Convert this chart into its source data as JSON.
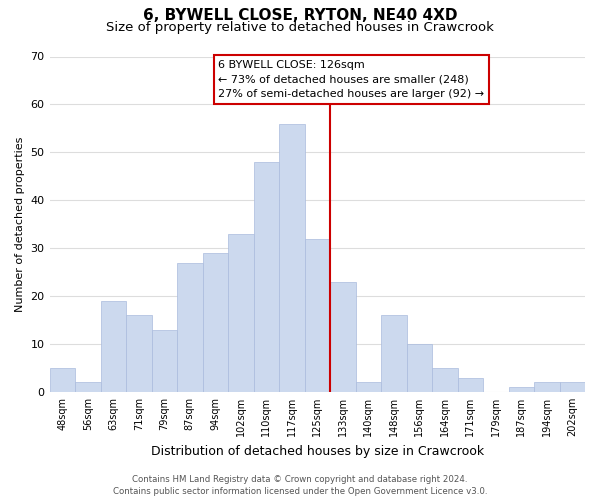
{
  "title": "6, BYWELL CLOSE, RYTON, NE40 4XD",
  "subtitle": "Size of property relative to detached houses in Crawcrook",
  "xlabel": "Distribution of detached houses by size in Crawcrook",
  "ylabel": "Number of detached properties",
  "bar_labels": [
    "48sqm",
    "56sqm",
    "63sqm",
    "71sqm",
    "79sqm",
    "87sqm",
    "94sqm",
    "102sqm",
    "110sqm",
    "117sqm",
    "125sqm",
    "133sqm",
    "140sqm",
    "148sqm",
    "156sqm",
    "164sqm",
    "171sqm",
    "179sqm",
    "187sqm",
    "194sqm",
    "202sqm"
  ],
  "bar_values": [
    5,
    2,
    19,
    16,
    13,
    27,
    29,
    33,
    48,
    56,
    32,
    23,
    2,
    16,
    10,
    5,
    3,
    0,
    1,
    2,
    2
  ],
  "bar_color": "#ccd9ee",
  "bar_edge_color": "#aabbdd",
  "highlight_bar_index": 10,
  "highlight_line_color": "#cc0000",
  "ylim": [
    0,
    70
  ],
  "yticks": [
    0,
    10,
    20,
    30,
    40,
    50,
    60,
    70
  ],
  "annotation_title": "6 BYWELL CLOSE: 126sqm",
  "annotation_line1": "← 73% of detached houses are smaller (248)",
  "annotation_line2": "27% of semi-detached houses are larger (92) →",
  "annotation_box_color": "#ffffff",
  "annotation_box_edge": "#cc0000",
  "footer_line1": "Contains HM Land Registry data © Crown copyright and database right 2024.",
  "footer_line2": "Contains public sector information licensed under the Open Government Licence v3.0.",
  "grid_color": "#dddddd",
  "background_color": "#ffffff",
  "title_fontsize": 11,
  "subtitle_fontsize": 9.5
}
